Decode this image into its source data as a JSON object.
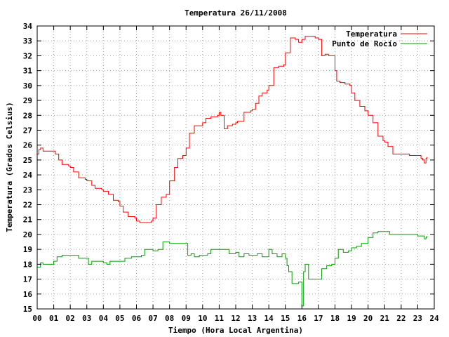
{
  "chart_data": {
    "type": "line",
    "title": "Temperatura 26/11/2008",
    "xlabel": "Tiempo (Hora Local Argentina)",
    "ylabel": "Temperatura (Grados Celsius)",
    "xlim": [
      0,
      24
    ],
    "ylim": [
      15,
      34
    ],
    "x_ticks": [
      0,
      1,
      2,
      3,
      4,
      5,
      6,
      7,
      8,
      9,
      10,
      11,
      12,
      13,
      14,
      15,
      16,
      17,
      18,
      19,
      20,
      21,
      22,
      23,
      24
    ],
    "x_tick_labels": [
      "00",
      "01",
      "02",
      "03",
      "04",
      "05",
      "06",
      "07",
      "08",
      "09",
      "10",
      "11",
      "12",
      "13",
      "14",
      "15",
      "16",
      "17",
      "18",
      "19",
      "20",
      "21",
      "22",
      "23",
      "24"
    ],
    "y_ticks": [
      15,
      16,
      17,
      18,
      19,
      20,
      21,
      22,
      23,
      24,
      25,
      26,
      27,
      28,
      29,
      30,
      31,
      32,
      33,
      34
    ],
    "grid": true,
    "legend_position": "top-right",
    "series": [
      {
        "name": "Temperatura",
        "color": "#ff0000",
        "x": [
          0,
          0.1,
          0.2,
          0.35,
          0.5,
          1.0,
          1.1,
          1.3,
          1.5,
          1.9,
          2.0,
          2.2,
          2.5,
          2.9,
          3.0,
          3.3,
          3.5,
          3.9,
          4.0,
          4.3,
          4.6,
          4.9,
          5.0,
          5.2,
          5.5,
          5.9,
          6.0,
          6.2,
          6.5,
          6.9,
          7.0,
          7.2,
          7.5,
          7.8,
          8.0,
          8.3,
          8.5,
          8.8,
          9.0,
          9.2,
          9.5,
          9.8,
          10.0,
          10.2,
          10.5,
          10.9,
          11.0,
          11.1,
          11.3,
          11.5,
          11.8,
          12.0,
          12.1,
          12.2,
          12.5,
          12.9,
          13.0,
          13.2,
          13.4,
          13.6,
          13.9,
          14.0,
          14.3,
          14.6,
          14.9,
          15.0,
          15.3,
          15.6,
          15.8,
          16.0,
          16.2,
          16.5,
          16.8,
          17.0,
          17.2,
          17.4,
          17.6,
          17.9,
          18.0,
          18.1,
          18.3,
          18.6,
          18.9,
          19.0,
          19.2,
          19.5,
          19.8,
          20.0,
          20.3,
          20.6,
          20.9,
          21.0,
          21.2,
          21.5,
          21.9,
          22.0,
          22.2,
          22.5,
          22.9,
          23.0,
          23.2,
          23.3,
          23.4,
          23.5,
          23.55
        ],
        "y": [
          25.4,
          25.7,
          25.8,
          25.6,
          25.6,
          25.6,
          25.4,
          25.0,
          24.7,
          24.6,
          24.5,
          24.2,
          23.8,
          23.7,
          23.6,
          23.3,
          23.1,
          23.0,
          22.9,
          22.7,
          22.3,
          22.2,
          21.9,
          21.5,
          21.2,
          21.1,
          20.9,
          20.8,
          20.8,
          20.9,
          21.1,
          22.0,
          22.5,
          22.7,
          23.6,
          24.5,
          25.1,
          25.3,
          25.8,
          26.8,
          27.3,
          27.3,
          27.5,
          27.8,
          27.9,
          28.0,
          28.2,
          28.0,
          27.1,
          27.3,
          27.4,
          27.5,
          27.6,
          27.6,
          28.2,
          28.3,
          28.4,
          28.8,
          29.3,
          29.5,
          29.7,
          30.0,
          31.2,
          31.3,
          31.4,
          32.2,
          33.2,
          33.1,
          32.9,
          33.1,
          33.3,
          33.3,
          33.2,
          33.1,
          32.0,
          32.1,
          32.0,
          32.0,
          31.0,
          30.3,
          30.2,
          30.1,
          30.0,
          29.5,
          29.0,
          28.6,
          28.3,
          28.0,
          27.5,
          26.6,
          26.3,
          26.2,
          25.9,
          25.4,
          25.4,
          25.4,
          25.4,
          25.3,
          25.3,
          25.3,
          25.1,
          25.0,
          24.8,
          25.1,
          25.2
        ]
      },
      {
        "name": "Punto de Rocío",
        "color": "#00a000",
        "x": [
          0,
          0.2,
          0.35,
          0.5,
          1.0,
          1.2,
          1.5,
          2.0,
          2.5,
          3.0,
          3.1,
          3.3,
          3.6,
          4.0,
          4.2,
          4.4,
          4.8,
          5.0,
          5.3,
          5.7,
          6.0,
          6.3,
          6.5,
          7.0,
          7.3,
          7.6,
          8.0,
          8.5,
          9.0,
          9.1,
          9.3,
          9.5,
          9.8,
          10.0,
          10.3,
          10.5,
          11.0,
          11.3,
          11.6,
          12.0,
          12.2,
          12.5,
          12.8,
          13.0,
          13.3,
          13.6,
          13.9,
          14.0,
          14.2,
          14.5,
          14.8,
          15.0,
          15.1,
          15.2,
          15.4,
          15.8,
          16.0,
          16.1,
          16.2,
          16.4,
          16.5,
          16.8,
          17.0,
          17.2,
          17.5,
          17.8,
          18.0,
          18.2,
          18.5,
          18.8,
          19.0,
          19.3,
          19.6,
          20.0,
          20.3,
          20.6,
          20.9,
          21.0,
          21.3,
          21.6,
          22.0,
          22.5,
          23.0,
          23.3,
          23.4,
          23.5,
          23.55
        ],
        "y": [
          17.8,
          18.1,
          18.0,
          18.0,
          18.2,
          18.5,
          18.6,
          18.6,
          18.4,
          18.4,
          18.0,
          18.2,
          18.2,
          18.1,
          18.0,
          18.2,
          18.2,
          18.2,
          18.4,
          18.5,
          18.5,
          18.6,
          19.0,
          18.9,
          19.0,
          19.5,
          19.4,
          19.4,
          19.4,
          18.6,
          18.7,
          18.5,
          18.6,
          18.6,
          18.7,
          19.0,
          19.0,
          19.0,
          18.7,
          18.8,
          18.5,
          18.7,
          18.6,
          18.6,
          18.7,
          18.5,
          18.5,
          19.0,
          18.7,
          18.5,
          18.7,
          18.4,
          17.9,
          17.5,
          16.7,
          16.8,
          15.2,
          17.5,
          18.0,
          17.0,
          17.0,
          17.0,
          17.0,
          17.7,
          17.9,
          18.0,
          18.4,
          19.0,
          18.8,
          18.9,
          19.1,
          19.2,
          19.4,
          19.8,
          20.1,
          20.2,
          20.2,
          20.2,
          20.0,
          20.0,
          20.0,
          20.0,
          19.9,
          19.9,
          19.7,
          19.8,
          19.9
        ]
      }
    ]
  }
}
